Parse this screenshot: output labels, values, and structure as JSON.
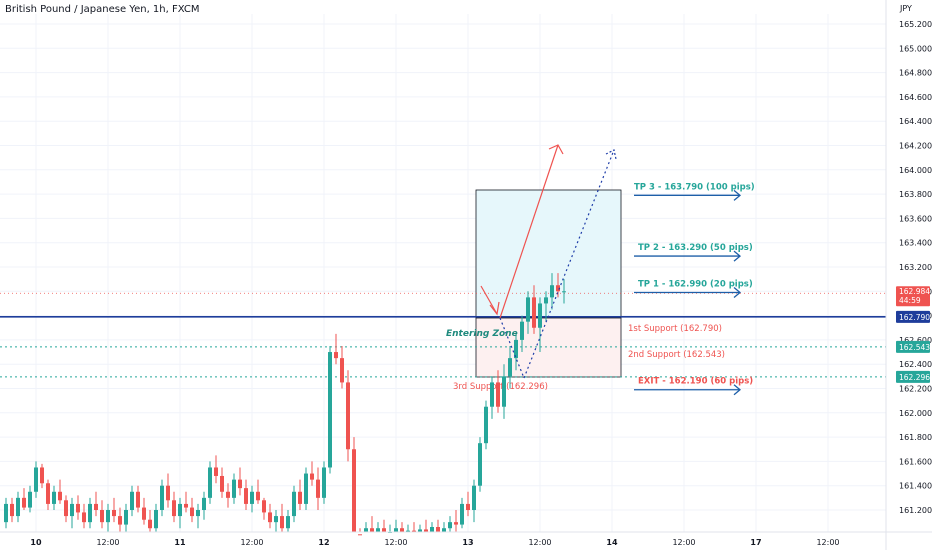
{
  "header": {
    "title": "British Pound / Japanese Yen, 1h, FXCM",
    "currency": "JPY"
  },
  "chart_data": {
    "type": "candlestick",
    "symbol": "British Pound / Japanese Yen",
    "interval": "1h",
    "source": "FXCM",
    "ylim": [
      161.1,
      165.35
    ],
    "y_ticks": [
      "165.200",
      "165.000",
      "164.800",
      "164.600",
      "164.400",
      "164.200",
      "164.000",
      "163.800",
      "163.600",
      "163.400",
      "163.200",
      "163.000",
      "162.800",
      "162.600",
      "162.400",
      "162.200",
      "162.000",
      "161.800",
      "161.600",
      "161.400",
      "161.200"
    ],
    "x_ticks": [
      "10",
      "12:00",
      "11",
      "12:00",
      "12",
      "12:00",
      "13",
      "12:00",
      "14",
      "12:00",
      "17",
      "12:00"
    ],
    "current_price": {
      "value": "162.984",
      "timer": "44:59"
    },
    "candles": [
      [
        161.1,
        161.3,
        161.05,
        161.25
      ],
      [
        161.25,
        161.3,
        161.1,
        161.15
      ],
      [
        161.15,
        161.35,
        161.1,
        161.3
      ],
      [
        161.3,
        161.38,
        161.2,
        161.22
      ],
      [
        161.22,
        161.4,
        161.18,
        161.35
      ],
      [
        161.35,
        161.6,
        161.3,
        161.55
      ],
      [
        161.55,
        161.58,
        161.38,
        161.42
      ],
      [
        161.42,
        161.45,
        161.2,
        161.25
      ],
      [
        161.25,
        161.4,
        161.2,
        161.35
      ],
      [
        161.35,
        161.45,
        161.25,
        161.28
      ],
      [
        161.28,
        161.32,
        161.1,
        161.15
      ],
      [
        161.15,
        161.3,
        161.05,
        161.25
      ],
      [
        161.25,
        161.32,
        161.12,
        161.18
      ],
      [
        161.18,
        161.25,
        161.05,
        161.1
      ],
      [
        161.1,
        161.3,
        161.05,
        161.25
      ],
      [
        161.25,
        161.35,
        161.15,
        161.2
      ],
      [
        161.2,
        161.28,
        161.05,
        161.1
      ],
      [
        161.1,
        161.25,
        161.0,
        161.2
      ],
      [
        161.2,
        161.3,
        161.1,
        161.15
      ],
      [
        161.15,
        161.22,
        161.02,
        161.08
      ],
      [
        161.08,
        161.25,
        161.0,
        161.2
      ],
      [
        161.2,
        161.4,
        161.15,
        161.35
      ],
      [
        161.35,
        161.4,
        161.18,
        161.22
      ],
      [
        161.22,
        161.3,
        161.08,
        161.12
      ],
      [
        161.12,
        161.2,
        161.0,
        161.05
      ],
      [
        161.05,
        161.25,
        161.0,
        161.2
      ],
      [
        161.2,
        161.45,
        161.15,
        161.4
      ],
      [
        161.4,
        161.5,
        161.22,
        161.28
      ],
      [
        161.28,
        161.35,
        161.1,
        161.15
      ],
      [
        161.15,
        161.3,
        161.05,
        161.25
      ],
      [
        161.25,
        161.35,
        161.18,
        161.22
      ],
      [
        161.22,
        161.3,
        161.1,
        161.15
      ],
      [
        161.15,
        161.25,
        161.05,
        161.2
      ],
      [
        161.2,
        161.35,
        161.12,
        161.3
      ],
      [
        161.3,
        161.6,
        161.25,
        161.55
      ],
      [
        161.55,
        161.65,
        161.42,
        161.48
      ],
      [
        161.48,
        161.55,
        161.3,
        161.35
      ],
      [
        161.35,
        161.42,
        161.22,
        161.3
      ],
      [
        161.3,
        161.5,
        161.25,
        161.45
      ],
      [
        161.45,
        161.55,
        161.32,
        161.38
      ],
      [
        161.38,
        161.45,
        161.2,
        161.25
      ],
      [
        161.25,
        161.4,
        161.18,
        161.35
      ],
      [
        161.35,
        161.45,
        161.25,
        161.28
      ],
      [
        161.28,
        161.3,
        161.12,
        161.18
      ],
      [
        161.18,
        161.25,
        161.05,
        161.1
      ],
      [
        161.1,
        161.2,
        161.0,
        161.15
      ],
      [
        161.15,
        161.25,
        161.0,
        161.05
      ],
      [
        161.05,
        161.2,
        160.95,
        161.15
      ],
      [
        161.15,
        161.4,
        161.1,
        161.35
      ],
      [
        161.35,
        161.45,
        161.2,
        161.25
      ],
      [
        161.25,
        161.55,
        161.2,
        161.5
      ],
      [
        161.5,
        161.6,
        161.4,
        161.45
      ],
      [
        161.45,
        161.55,
        161.2,
        161.3
      ],
      [
        161.3,
        161.6,
        161.25,
        161.55
      ],
      [
        161.55,
        162.55,
        161.5,
        162.5
      ],
      [
        162.5,
        162.65,
        162.4,
        162.45
      ],
      [
        162.45,
        162.55,
        162.2,
        162.25
      ],
      [
        162.25,
        162.35,
        161.6,
        161.7
      ],
      [
        161.7,
        161.8,
        160.9,
        161.0
      ],
      [
        161.0,
        161.05,
        160.9,
        160.95
      ],
      [
        160.95,
        161.1,
        160.9,
        161.05
      ],
      [
        161.05,
        161.15,
        160.95,
        161.0
      ],
      [
        161.0,
        161.1,
        160.92,
        161.05
      ],
      [
        161.05,
        161.12,
        160.95,
        160.98
      ],
      [
        160.98,
        161.08,
        160.92,
        161.02
      ],
      [
        161.02,
        161.12,
        160.96,
        161.05
      ],
      [
        161.05,
        161.1,
        160.95,
        161.0
      ],
      [
        161.0,
        161.08,
        160.9,
        161.03
      ],
      [
        161.03,
        161.1,
        160.95,
        161.0
      ],
      [
        161.0,
        161.08,
        160.92,
        161.04
      ],
      [
        161.04,
        161.12,
        160.96,
        161.0
      ],
      [
        161.0,
        161.1,
        160.95,
        161.06
      ],
      [
        161.06,
        161.12,
        160.98,
        161.02
      ],
      [
        161.02,
        161.1,
        160.95,
        161.05
      ],
      [
        161.05,
        161.15,
        160.98,
        161.1
      ],
      [
        161.1,
        161.2,
        161.02,
        161.08
      ],
      [
        161.08,
        161.3,
        161.05,
        161.25
      ],
      [
        161.25,
        161.35,
        161.15,
        161.2
      ],
      [
        161.2,
        161.45,
        161.1,
        161.4
      ],
      [
        161.4,
        161.8,
        161.35,
        161.75
      ],
      [
        161.75,
        162.1,
        161.7,
        162.05
      ],
      [
        162.05,
        162.3,
        161.95,
        162.25
      ],
      [
        162.25,
        162.35,
        162.0,
        162.05
      ],
      [
        162.05,
        162.4,
        161.95,
        162.3
      ],
      [
        162.3,
        162.55,
        162.2,
        162.45
      ],
      [
        162.45,
        162.65,
        162.35,
        162.6
      ],
      [
        162.6,
        162.8,
        162.5,
        162.75
      ],
      [
        162.75,
        163.0,
        162.65,
        162.95
      ],
      [
        162.95,
        163.05,
        162.65,
        162.7
      ],
      [
        162.7,
        162.95,
        162.5,
        162.9
      ],
      [
        162.9,
        163.0,
        162.75,
        162.95
      ],
      [
        162.95,
        163.15,
        162.85,
        163.05
      ],
      [
        163.05,
        163.15,
        162.95,
        163.0
      ],
      [
        163.0,
        163.1,
        162.9,
        163.0
      ]
    ],
    "levels": [
      {
        "label": "1st Support (162.790)",
        "value": 162.79
      },
      {
        "label": "2nd Support (162.543)",
        "value": 162.543
      },
      {
        "label": "3rd Support (162.296)",
        "value": 162.296
      }
    ],
    "price_tags": [
      "162.790",
      "162.543",
      "162.296"
    ],
    "targets": [
      {
        "label": "TP 3 - 163.790 (100 pips)",
        "value": 163.79
      },
      {
        "label": "TP 2 - 163.290 (50 pips)",
        "value": 163.29
      },
      {
        "label": "TP 1 - 162.990 (20 pips)",
        "value": 162.99
      },
      {
        "label": "EXIT - 162.190 (60 pips)",
        "value": 162.19
      }
    ],
    "zone_label": "Entering Zone",
    "colors": {
      "up": "#26a69a",
      "down": "#ef5350",
      "entry": "#1e3d9b",
      "support": "#26a69a",
      "target": "#1e5fa8",
      "target_text": "#26a69a",
      "exit_text": "#ef5350",
      "arrow_up": "#ef5350",
      "arrow_dotted": "#1e3da8"
    }
  }
}
